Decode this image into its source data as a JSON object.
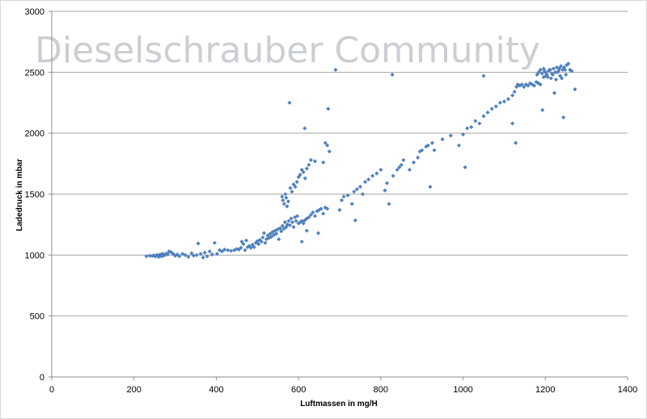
{
  "watermark": "Dieselschrauber Community",
  "chart_data": {
    "type": "scatter",
    "title": "",
    "xlabel": "Luftmassen in mg/H",
    "ylabel": "Ladedruck in mbar",
    "xlim": [
      0,
      1400
    ],
    "ylim": [
      0,
      3000
    ],
    "xticks": [
      0,
      200,
      400,
      600,
      800,
      1000,
      1200,
      1400
    ],
    "yticks": [
      0,
      500,
      1000,
      1500,
      2000,
      2500,
      3000
    ],
    "grid": "horizontal",
    "legend": "none",
    "marker_color": "#4f81bd",
    "series": [
      {
        "name": "",
        "points": [
          [
            230,
            990
          ],
          [
            238,
            995
          ],
          [
            244,
            992
          ],
          [
            248,
            998
          ],
          [
            252,
            988
          ],
          [
            255,
            1000
          ],
          [
            258,
            995
          ],
          [
            260,
            985
          ],
          [
            262,
            1003
          ],
          [
            264,
            993
          ],
          [
            266,
            1005
          ],
          [
            268,
            990
          ],
          [
            270,
            1010
          ],
          [
            272,
            998
          ],
          [
            275,
            1000
          ],
          [
            278,
            1012
          ],
          [
            282,
            1005
          ],
          [
            285,
            1030
          ],
          [
            290,
            1025
          ],
          [
            295,
            1010
          ],
          [
            300,
            995
          ],
          [
            305,
            1005
          ],
          [
            310,
            990
          ],
          [
            318,
            1010
          ],
          [
            325,
            1000
          ],
          [
            332,
            985
          ],
          [
            340,
            1015
          ],
          [
            345,
            995
          ],
          [
            352,
            1000
          ],
          [
            356,
            1095
          ],
          [
            362,
            1010
          ],
          [
            368,
            980
          ],
          [
            372,
            1020
          ],
          [
            378,
            990
          ],
          [
            384,
            1030
          ],
          [
            390,
            1005
          ],
          [
            396,
            1100
          ],
          [
            402,
            1010
          ],
          [
            408,
            1040
          ],
          [
            414,
            1030
          ],
          [
            420,
            1045
          ],
          [
            428,
            1040
          ],
          [
            436,
            1035
          ],
          [
            444,
            1040
          ],
          [
            450,
            1050
          ],
          [
            455,
            1045
          ],
          [
            460,
            1060
          ],
          [
            462,
            1110
          ],
          [
            466,
            1090
          ],
          [
            470,
            1040
          ],
          [
            473,
            1120
          ],
          [
            476,
            1065
          ],
          [
            480,
            1075
          ],
          [
            484,
            1060
          ],
          [
            488,
            1085
          ],
          [
            492,
            1065
          ],
          [
            496,
            1100
          ],
          [
            500,
            1115
          ],
          [
            503,
            1090
          ],
          [
            506,
            1125
          ],
          [
            510,
            1110
          ],
          [
            513,
            1145
          ],
          [
            516,
            1180
          ],
          [
            519,
            1100
          ],
          [
            522,
            1130
          ],
          [
            525,
            1160
          ],
          [
            528,
            1140
          ],
          [
            531,
            1175
          ],
          [
            534,
            1150
          ],
          [
            537,
            1190
          ],
          [
            540,
            1165
          ],
          [
            543,
            1200
          ],
          [
            546,
            1175
          ],
          [
            549,
            1210
          ],
          [
            552,
            1130
          ],
          [
            555,
            1220
          ],
          [
            558,
            1195
          ],
          [
            561,
            1240
          ],
          [
            564,
            1215
          ],
          [
            567,
            1270
          ],
          [
            570,
            1230
          ],
          [
            573,
            1250
          ],
          [
            576,
            1280
          ],
          [
            579,
            1245
          ],
          [
            582,
            1300
          ],
          [
            585,
            1270
          ],
          [
            588,
            1230
          ],
          [
            591,
            1310
          ],
          [
            594,
            1280
          ],
          [
            597,
            1320
          ],
          [
            600,
            1260
          ],
          [
            604,
            1270
          ],
          [
            608,
            1280
          ],
          [
            612,
            1260
          ],
          [
            615,
            1285
          ],
          [
            620,
            1300
          ],
          [
            625,
            1310
          ],
          [
            630,
            1330
          ],
          [
            635,
            1350
          ],
          [
            640,
            1320
          ],
          [
            645,
            1360
          ],
          [
            650,
            1370
          ],
          [
            655,
            1380
          ],
          [
            660,
            1340
          ],
          [
            665,
            1390
          ],
          [
            670,
            1380
          ],
          [
            560,
            1480
          ],
          [
            562,
            1450
          ],
          [
            565,
            1420
          ],
          [
            568,
            1500
          ],
          [
            570,
            1470
          ],
          [
            572,
            1400
          ],
          [
            575,
            1440
          ],
          [
            580,
            1550
          ],
          [
            584,
            1520
          ],
          [
            588,
            1580
          ],
          [
            592,
            1560
          ],
          [
            596,
            1600
          ],
          [
            600,
            1640
          ],
          [
            604,
            1660
          ],
          [
            608,
            1700
          ],
          [
            612,
            1680
          ],
          [
            616,
            1630
          ],
          [
            620,
            1710
          ],
          [
            625,
            1740
          ],
          [
            630,
            1780
          ],
          [
            640,
            1770
          ],
          [
            660,
            1760
          ],
          [
            665,
            1920
          ],
          [
            670,
            1900
          ],
          [
            675,
            1850
          ],
          [
            608,
            1110
          ],
          [
            620,
            1200
          ],
          [
            648,
            1180
          ],
          [
            578,
            2250
          ],
          [
            615,
            2040
          ],
          [
            672,
            2200
          ],
          [
            690,
            2520
          ],
          [
            828,
            2480
          ],
          [
            700,
            1370
          ],
          [
            705,
            1450
          ],
          [
            710,
            1480
          ],
          [
            720,
            1490
          ],
          [
            730,
            1420
          ],
          [
            735,
            1520
          ],
          [
            738,
            1285
          ],
          [
            742,
            1540
          ],
          [
            750,
            1560
          ],
          [
            756,
            1500
          ],
          [
            762,
            1600
          ],
          [
            770,
            1620
          ],
          [
            780,
            1650
          ],
          [
            790,
            1670
          ],
          [
            800,
            1700
          ],
          [
            810,
            1530
          ],
          [
            815,
            1590
          ],
          [
            820,
            1420
          ],
          [
            830,
            1650
          ],
          [
            840,
            1700
          ],
          [
            845,
            1720
          ],
          [
            850,
            1740
          ],
          [
            855,
            1780
          ],
          [
            870,
            1700
          ],
          [
            880,
            1760
          ],
          [
            890,
            1800
          ],
          [
            895,
            1850
          ],
          [
            900,
            1860
          ],
          [
            910,
            1890
          ],
          [
            915,
            1900
          ],
          [
            920,
            1560
          ],
          [
            925,
            1920
          ],
          [
            930,
            1860
          ],
          [
            950,
            1950
          ],
          [
            970,
            1980
          ],
          [
            990,
            1900
          ],
          [
            1000,
            1990
          ],
          [
            1005,
            1720
          ],
          [
            1010,
            2040
          ],
          [
            1020,
            2050
          ],
          [
            1030,
            2100
          ],
          [
            1040,
            2080
          ],
          [
            1050,
            2140
          ],
          [
            1060,
            2170
          ],
          [
            1070,
            2200
          ],
          [
            1080,
            2220
          ],
          [
            1090,
            2250
          ],
          [
            1100,
            2260
          ],
          [
            1110,
            2280
          ],
          [
            1120,
            2080
          ],
          [
            1050,
            2470
          ],
          [
            1120,
            2310
          ],
          [
            1125,
            2340
          ],
          [
            1130,
            2380
          ],
          [
            1128,
            1920
          ],
          [
            1133,
            2400
          ],
          [
            1138,
            2390
          ],
          [
            1143,
            2400
          ],
          [
            1148,
            2380
          ],
          [
            1153,
            2400
          ],
          [
            1158,
            2390
          ],
          [
            1163,
            2410
          ],
          [
            1168,
            2400
          ],
          [
            1173,
            2390
          ],
          [
            1178,
            2420
          ],
          [
            1183,
            2410
          ],
          [
            1188,
            2400
          ],
          [
            1193,
            2190
          ],
          [
            1196,
            2460
          ],
          [
            1200,
            2500
          ],
          [
            1204,
            2480
          ],
          [
            1208,
            2510
          ],
          [
            1212,
            2520
          ],
          [
            1216,
            2490
          ],
          [
            1220,
            2530
          ],
          [
            1224,
            2500
          ],
          [
            1228,
            2540
          ],
          [
            1232,
            2510
          ],
          [
            1236,
            2470
          ],
          [
            1240,
            2450
          ],
          [
            1244,
            2130
          ],
          [
            1248,
            2520
          ],
          [
            1252,
            2560
          ],
          [
            1256,
            2570
          ],
          [
            1260,
            2520
          ],
          [
            1264,
            2510
          ],
          [
            1272,
            2360
          ],
          [
            1180,
            2480
          ],
          [
            1184,
            2500
          ],
          [
            1188,
            2520
          ],
          [
            1192,
            2490
          ],
          [
            1196,
            2530
          ],
          [
            1198,
            2510
          ],
          [
            1202,
            2470
          ],
          [
            1206,
            2460
          ],
          [
            1210,
            2520
          ],
          [
            1214,
            2450
          ],
          [
            1218,
            2480
          ],
          [
            1222,
            2330
          ],
          [
            1226,
            2440
          ],
          [
            1230,
            2500
          ],
          [
            1234,
            2530
          ],
          [
            1238,
            2550
          ],
          [
            1242,
            2520
          ],
          [
            1246,
            2540
          ],
          [
            1250,
            2480
          ]
        ]
      }
    ]
  }
}
